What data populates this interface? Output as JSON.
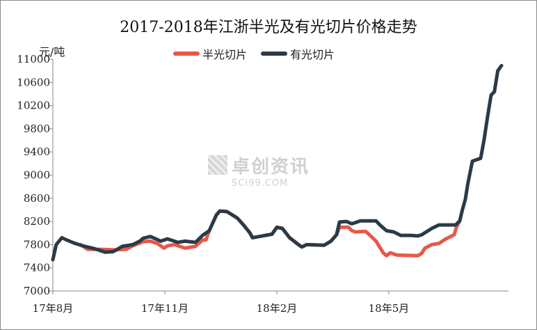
{
  "chart_data": {
    "type": "line",
    "title": "2017-2018年江浙半光及有光切片价格走势",
    "ylabel": "元/吨",
    "xlabel": "",
    "ylim": [
      7000,
      11000
    ],
    "yticks": [
      7000,
      7400,
      7800,
      8200,
      8600,
      9000,
      9400,
      9800,
      10200,
      10600,
      11000
    ],
    "x_unit": "months since 2017-08",
    "xlim": [
      0,
      12.02
    ],
    "xticks": [
      {
        "x": 0,
        "label": "17年8月"
      },
      {
        "x": 3,
        "label": "17年11月"
      },
      {
        "x": 6,
        "label": "18年2月"
      },
      {
        "x": 9,
        "label": "18年5月"
      }
    ],
    "grid": false,
    "legend": "top-center",
    "watermark": {
      "text": "卓创资讯",
      "sub": "SCI99.COM"
    },
    "series": [
      {
        "name": "半光切片",
        "color": "#e8574a",
        "points": [
          [
            0.75,
            7800
          ],
          [
            0.93,
            7720
          ],
          [
            1.3,
            7720
          ],
          [
            1.68,
            7710
          ],
          [
            1.96,
            7720
          ],
          [
            2.14,
            7780
          ],
          [
            2.42,
            7850
          ],
          [
            2.61,
            7860
          ],
          [
            2.8,
            7820
          ],
          [
            2.98,
            7740
          ],
          [
            3.07,
            7780
          ],
          [
            3.26,
            7800
          ],
          [
            3.54,
            7740
          ],
          [
            3.82,
            7770
          ],
          [
            4.01,
            7880
          ],
          [
            4.1,
            7880
          ],
          [
            4.19,
            8040
          ],
          [
            4.38,
            8310
          ],
          [
            4.47,
            8380
          ],
          [
            4.66,
            8370
          ],
          [
            4.94,
            8260
          ],
          [
            5.12,
            8130
          ],
          [
            5.27,
            8010
          ],
          [
            5.35,
            7920
          ],
          [
            5.87,
            7980
          ],
          [
            6.0,
            8100
          ],
          [
            6.15,
            8080
          ],
          [
            6.34,
            7920
          ],
          [
            6.58,
            7800
          ],
          [
            6.67,
            7760
          ],
          [
            6.8,
            7800
          ],
          [
            7.27,
            7790
          ],
          [
            7.45,
            7860
          ],
          [
            7.6,
            7970
          ],
          [
            7.68,
            8100
          ],
          [
            7.92,
            8100
          ],
          [
            8.01,
            8040
          ],
          [
            8.11,
            8020
          ],
          [
            8.38,
            8030
          ],
          [
            8.48,
            7970
          ],
          [
            8.66,
            7860
          ],
          [
            8.85,
            7660
          ],
          [
            8.94,
            7610
          ],
          [
            9.04,
            7660
          ],
          [
            9.22,
            7620
          ],
          [
            9.78,
            7610
          ],
          [
            9.88,
            7650
          ],
          [
            9.97,
            7740
          ],
          [
            10.15,
            7800
          ],
          [
            10.34,
            7820
          ],
          [
            10.53,
            7900
          ],
          [
            10.75,
            7970
          ],
          [
            10.81,
            8100
          ],
          [
            10.9,
            8210
          ]
        ]
      },
      {
        "name": "有光切片",
        "color": "#2b3a47",
        "points": [
          [
            0,
            7540
          ],
          [
            0.09,
            7800
          ],
          [
            0.24,
            7920
          ],
          [
            0.37,
            7880
          ],
          [
            0.56,
            7830
          ],
          [
            0.8,
            7780
          ],
          [
            1.12,
            7730
          ],
          [
            1.4,
            7670
          ],
          [
            1.62,
            7680
          ],
          [
            1.86,
            7770
          ],
          [
            2.14,
            7800
          ],
          [
            2.33,
            7860
          ],
          [
            2.42,
            7910
          ],
          [
            2.61,
            7940
          ],
          [
            2.89,
            7860
          ],
          [
            3.07,
            7900
          ],
          [
            3.35,
            7840
          ],
          [
            3.54,
            7860
          ],
          [
            3.82,
            7840
          ],
          [
            4.01,
            7960
          ],
          [
            4.19,
            8040
          ],
          [
            4.38,
            8310
          ],
          [
            4.47,
            8380
          ],
          [
            4.66,
            8370
          ],
          [
            4.94,
            8260
          ],
          [
            5.12,
            8130
          ],
          [
            5.27,
            8010
          ],
          [
            5.35,
            7920
          ],
          [
            5.87,
            7980
          ],
          [
            6.0,
            8100
          ],
          [
            6.15,
            8080
          ],
          [
            6.34,
            7920
          ],
          [
            6.58,
            7800
          ],
          [
            6.67,
            7760
          ],
          [
            6.8,
            7800
          ],
          [
            7.27,
            7790
          ],
          [
            7.45,
            7860
          ],
          [
            7.6,
            7970
          ],
          [
            7.68,
            8190
          ],
          [
            7.86,
            8200
          ],
          [
            8.01,
            8160
          ],
          [
            8.24,
            8210
          ],
          [
            8.66,
            8210
          ],
          [
            8.76,
            8140
          ],
          [
            8.94,
            8040
          ],
          [
            9.13,
            8020
          ],
          [
            9.32,
            7960
          ],
          [
            9.6,
            7960
          ],
          [
            9.78,
            7950
          ],
          [
            9.88,
            7970
          ],
          [
            10.15,
            8080
          ],
          [
            10.34,
            8140
          ],
          [
            10.79,
            8140
          ],
          [
            10.9,
            8210
          ],
          [
            10.97,
            8400
          ],
          [
            11.05,
            8580
          ],
          [
            11.12,
            8860
          ],
          [
            11.24,
            9240
          ],
          [
            11.46,
            9290
          ],
          [
            11.55,
            9600
          ],
          [
            11.65,
            10020
          ],
          [
            11.74,
            10380
          ],
          [
            11.83,
            10440
          ],
          [
            11.92,
            10800
          ],
          [
            12.02,
            10890
          ]
        ]
      }
    ]
  }
}
